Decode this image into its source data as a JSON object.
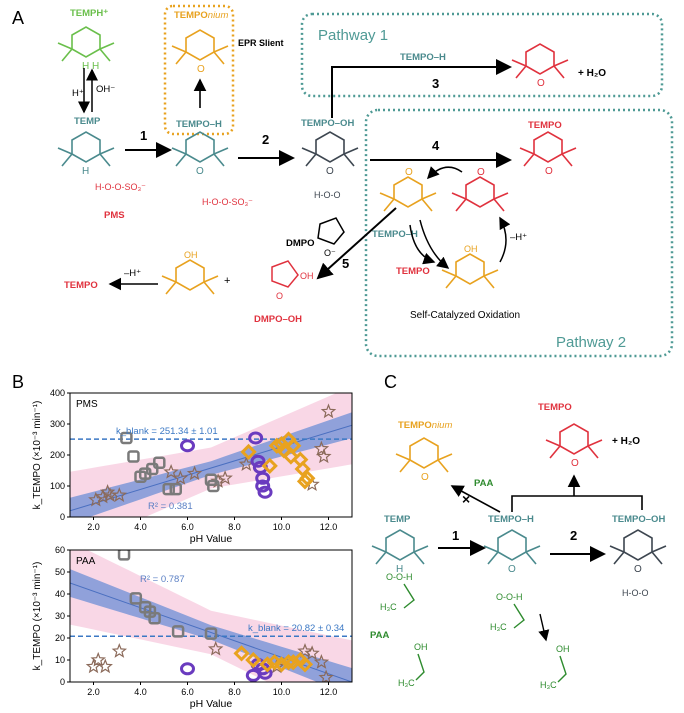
{
  "panel_labels": {
    "a": "A",
    "b": "B",
    "c": "C"
  },
  "colors": {
    "teal": "#4a8a8d",
    "red": "#e0323e",
    "orange": "#e8a21f",
    "green": "#6abf4b",
    "darkgreen": "#2e8b2e",
    "gray": "#3d4650",
    "purple": "#6a3bbf",
    "blue_band": "#6c8fd6",
    "pink_band": "#f7c9dd",
    "box_teal": "#4f9a95"
  },
  "panel_a": {
    "temph": "TEMPH⁺",
    "temponium": "TEMPO",
    "nium": "nium",
    "epr": "EPR Slient",
    "pathway1": "Pathway 1",
    "pathway2": "Pathway 2",
    "tempo_h": "TEMPO–H",
    "tempo_h_p1": "TEMPO–H",
    "tempo_h_p2": "TEMPO–H",
    "temp": "TEMP",
    "hplus": "H⁺",
    "ohminus": "OH⁻",
    "pms": "PMS",
    "tempo_oh": "TEMPO–OH",
    "tempo_top": "TEMPO",
    "tempo_p2": "TEMPO",
    "tempo_left": "TEMPO",
    "h2o": "+ H₂O",
    "num1": "1",
    "num2": "2",
    "num3": "3",
    "num4": "4",
    "num5": "5",
    "dmpo": "DMPO",
    "dmpo_oh": "DMPO–OH",
    "minus_h": "–H⁺",
    "minus_h2": "–H⁺",
    "plus": "+",
    "self_cat": "Self-Catalyzed Oxidation"
  },
  "panel_c": {
    "temponium": "TEMPO",
    "nium": "nium",
    "tempo": "TEMPO",
    "h2o": "+ H₂O",
    "paa_arrow": "PAA",
    "temp": "TEMP",
    "tempo_h": "TEMPO–H",
    "tempo_oh": "TEMPO–OH",
    "num1": "1",
    "num2": "2",
    "paa": "PAA"
  },
  "chart_data": [
    {
      "type": "scatter",
      "panel": "PMS",
      "xlabel": "pH Value",
      "ylabel": "k_TEMPO (×10⁻³ min⁻¹)",
      "xlim": [
        1,
        13
      ],
      "ylim": [
        0,
        400
      ],
      "xticks": [
        "2.0",
        "4.0",
        "6.0",
        "8.0",
        "10.0",
        "12.0"
      ],
      "yticks": [
        "0",
        "100",
        "200",
        "300",
        "400"
      ],
      "blank_label": "k_blank = 251.34 ± 1.01",
      "blank_value": 251.34,
      "r2_label": "R² = 0.381",
      "fit_line": {
        "x": [
          1.0,
          11.0
        ],
        "y": [
          20,
          250
        ]
      },
      "series": [
        {
          "marker": "star",
          "color": "#8b6a5a",
          "points": [
            [
              2.1,
              55
            ],
            [
              2.4,
              65
            ],
            [
              2.6,
              80
            ],
            [
              2.7,
              70
            ],
            [
              3.1,
              70
            ],
            [
              5.3,
              145
            ],
            [
              5.7,
              125
            ],
            [
              6.3,
              140
            ],
            [
              7.3,
              115
            ],
            [
              7.6,
              125
            ],
            [
              8.5,
              170
            ],
            [
              11.3,
              105
            ],
            [
              11.7,
              220
            ],
            [
              11.8,
              195
            ],
            [
              12.0,
              340
            ]
          ]
        },
        {
          "marker": "square",
          "color": "#7a7a7a",
          "points": [
            [
              3.4,
              255
            ],
            [
              3.7,
              195
            ],
            [
              4.0,
              130
            ],
            [
              4.2,
              140
            ],
            [
              4.5,
              155
            ],
            [
              4.8,
              175
            ],
            [
              5.2,
              90
            ],
            [
              5.5,
              90
            ],
            [
              7.0,
              120
            ],
            [
              7.1,
              100
            ]
          ]
        },
        {
          "marker": "circle",
          "color": "#6a3bbf",
          "points": [
            [
              6.0,
              230
            ],
            [
              8.9,
              255
            ],
            [
              9.0,
              180
            ],
            [
              9.1,
              160
            ],
            [
              9.2,
              125
            ],
            [
              9.2,
              100
            ],
            [
              9.3,
              80
            ]
          ]
        },
        {
          "marker": "diamond",
          "color": "#e8a21f",
          "points": [
            [
              8.6,
              210
            ],
            [
              9.5,
              165
            ],
            [
              9.8,
              230
            ],
            [
              10.0,
              235
            ],
            [
              10.1,
              215
            ],
            [
              10.3,
              250
            ],
            [
              10.4,
              195
            ],
            [
              10.5,
              230
            ],
            [
              10.8,
              185
            ],
            [
              10.9,
              155
            ],
            [
              11.0,
              115
            ],
            [
              11.1,
              125
            ]
          ]
        }
      ]
    },
    {
      "type": "scatter",
      "panel": "PAA",
      "xlabel": "pH Value",
      "ylabel": "k_TEMPO (×10⁻³ min⁻¹)",
      "xlim": [
        1,
        13
      ],
      "ylim": [
        0,
        60
      ],
      "xticks": [
        "2.0",
        "4.0",
        "6.0",
        "8.0",
        "10.0",
        "12.0"
      ],
      "yticks": [
        "0",
        "10",
        "20",
        "30",
        "40",
        "50",
        "60"
      ],
      "blank_label": "k_blank = 20.82 ± 0.34",
      "blank_value": 20.82,
      "r2_label": "R² = 0.787",
      "fit_line": {
        "x": [
          1.0,
          13.0
        ],
        "y": [
          45,
          0
        ]
      },
      "series": [
        {
          "marker": "star",
          "color": "#8b6a5a",
          "points": [
            [
              2.0,
              7
            ],
            [
              2.2,
              10
            ],
            [
              2.5,
              7
            ],
            [
              3.1,
              14
            ],
            [
              7.2,
              15
            ],
            [
              9.8,
              7
            ],
            [
              11.0,
              14
            ],
            [
              11.3,
              13
            ],
            [
              11.7,
              9
            ],
            [
              11.9,
              2
            ]
          ]
        },
        {
          "marker": "square",
          "color": "#7a7a7a",
          "points": [
            [
              3.3,
              58
            ],
            [
              3.8,
              38
            ],
            [
              4.2,
              34
            ],
            [
              4.4,
              32
            ],
            [
              4.6,
              29
            ],
            [
              5.6,
              23
            ],
            [
              7.0,
              22
            ]
          ]
        },
        {
          "marker": "circle",
          "color": "#6a3bbf",
          "points": [
            [
              6.0,
              6
            ],
            [
              8.8,
              3
            ],
            [
              9.0,
              8
            ],
            [
              9.2,
              6
            ],
            [
              9.3,
              4
            ]
          ]
        },
        {
          "marker": "diamond",
          "color": "#e8a21f",
          "points": [
            [
              8.3,
              13
            ],
            [
              8.8,
              10
            ],
            [
              9.4,
              8
            ],
            [
              9.7,
              9
            ],
            [
              10.0,
              8
            ],
            [
              10.3,
              9
            ],
            [
              10.5,
              9
            ],
            [
              10.8,
              10
            ],
            [
              11.0,
              8
            ]
          ]
        }
      ]
    }
  ]
}
